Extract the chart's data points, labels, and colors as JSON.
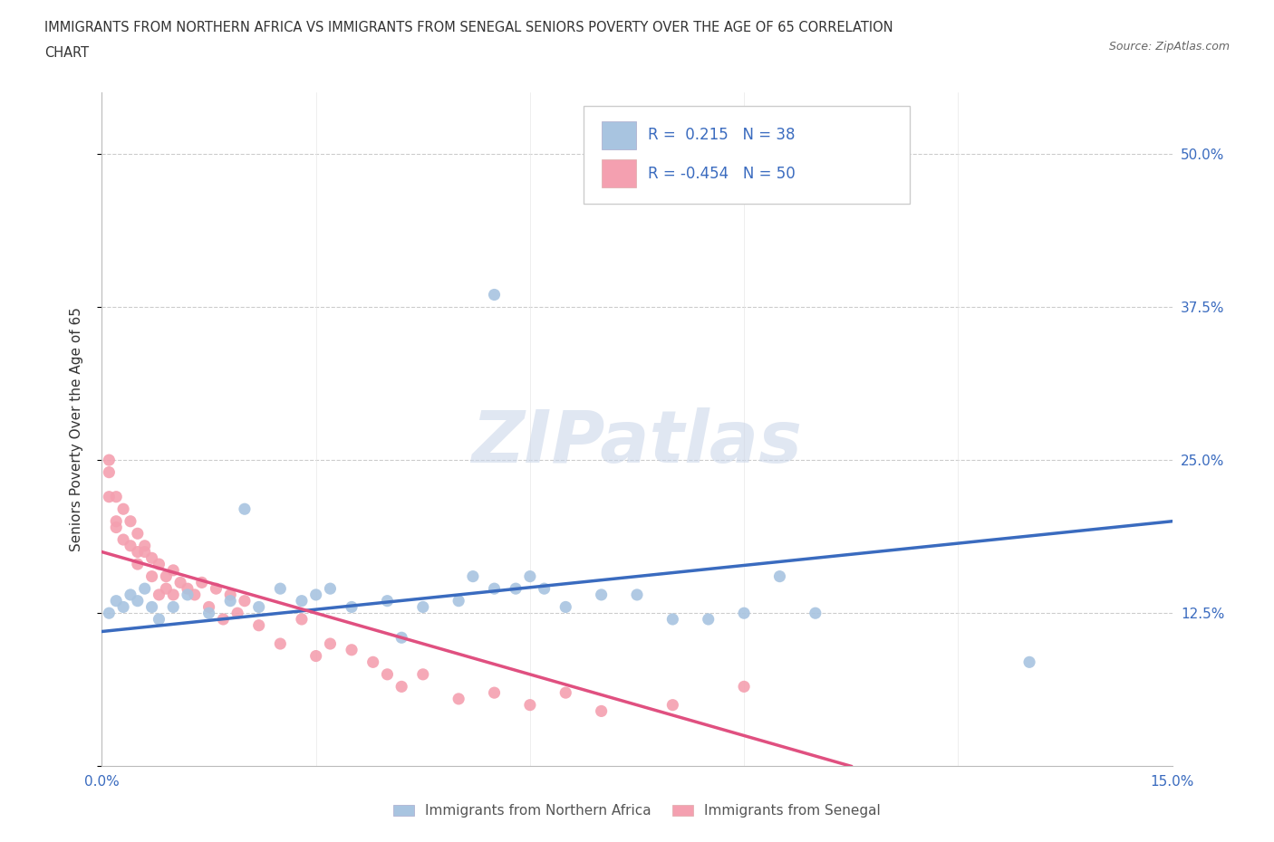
{
  "title_line1": "IMMIGRANTS FROM NORTHERN AFRICA VS IMMIGRANTS FROM SENEGAL SENIORS POVERTY OVER THE AGE OF 65 CORRELATION",
  "title_line2": "CHART",
  "source": "Source: ZipAtlas.com",
  "ylabel": "Seniors Poverty Over the Age of 65",
  "xlabel_blue": "Immigrants from Northern Africa",
  "xlabel_pink": "Immigrants from Senegal",
  "xlim": [
    0.0,
    0.15
  ],
  "ylim": [
    0.0,
    0.55
  ],
  "yticks": [
    0.0,
    0.125,
    0.25,
    0.375,
    0.5
  ],
  "ytick_labels": [
    "",
    "12.5%",
    "25.0%",
    "37.5%",
    "50.0%"
  ],
  "xticks": [
    0.0,
    0.03,
    0.06,
    0.09,
    0.12,
    0.15
  ],
  "xtick_labels": [
    "0.0%",
    "",
    "",
    "",
    "",
    "15.0%"
  ],
  "R_blue": 0.215,
  "N_blue": 38,
  "R_pink": -0.454,
  "N_pink": 50,
  "blue_color": "#a8c4e0",
  "pink_color": "#f4a0b0",
  "line_blue": "#3a6bbf",
  "line_pink": "#e05080",
  "watermark": "ZIPatlas",
  "blue_line_x0": 0.0,
  "blue_line_y0": 0.11,
  "blue_line_x1": 0.15,
  "blue_line_y1": 0.2,
  "pink_line_x0": 0.0,
  "pink_line_y0": 0.175,
  "pink_line_x1": 0.105,
  "pink_line_y1": 0.0,
  "blue_scatter_x": [
    0.001,
    0.002,
    0.003,
    0.004,
    0.005,
    0.006,
    0.007,
    0.008,
    0.01,
    0.012,
    0.015,
    0.018,
    0.02,
    0.022,
    0.025,
    0.028,
    0.03,
    0.032,
    0.035,
    0.04,
    0.042,
    0.045,
    0.05,
    0.052,
    0.055,
    0.058,
    0.06,
    0.062,
    0.065,
    0.07,
    0.075,
    0.08,
    0.085,
    0.09,
    0.095,
    0.1,
    0.13,
    0.055
  ],
  "blue_scatter_y": [
    0.125,
    0.135,
    0.13,
    0.14,
    0.135,
    0.145,
    0.13,
    0.12,
    0.13,
    0.14,
    0.125,
    0.135,
    0.21,
    0.13,
    0.145,
    0.135,
    0.14,
    0.145,
    0.13,
    0.135,
    0.105,
    0.13,
    0.135,
    0.155,
    0.145,
    0.145,
    0.155,
    0.145,
    0.13,
    0.14,
    0.14,
    0.12,
    0.12,
    0.125,
    0.155,
    0.125,
    0.085,
    0.385
  ],
  "pink_scatter_x": [
    0.001,
    0.001,
    0.001,
    0.002,
    0.002,
    0.002,
    0.003,
    0.003,
    0.004,
    0.004,
    0.005,
    0.005,
    0.005,
    0.006,
    0.006,
    0.007,
    0.007,
    0.008,
    0.008,
    0.009,
    0.009,
    0.01,
    0.01,
    0.011,
    0.012,
    0.013,
    0.014,
    0.015,
    0.016,
    0.017,
    0.018,
    0.019,
    0.02,
    0.022,
    0.025,
    0.028,
    0.03,
    0.032,
    0.035,
    0.038,
    0.04,
    0.042,
    0.045,
    0.05,
    0.055,
    0.06,
    0.065,
    0.07,
    0.08,
    0.09
  ],
  "pink_scatter_y": [
    0.25,
    0.24,
    0.22,
    0.2,
    0.22,
    0.195,
    0.21,
    0.185,
    0.2,
    0.18,
    0.19,
    0.175,
    0.165,
    0.18,
    0.175,
    0.17,
    0.155,
    0.165,
    0.14,
    0.155,
    0.145,
    0.16,
    0.14,
    0.15,
    0.145,
    0.14,
    0.15,
    0.13,
    0.145,
    0.12,
    0.14,
    0.125,
    0.135,
    0.115,
    0.1,
    0.12,
    0.09,
    0.1,
    0.095,
    0.085,
    0.075,
    0.065,
    0.075,
    0.055,
    0.06,
    0.05,
    0.06,
    0.045,
    0.05,
    0.065
  ]
}
